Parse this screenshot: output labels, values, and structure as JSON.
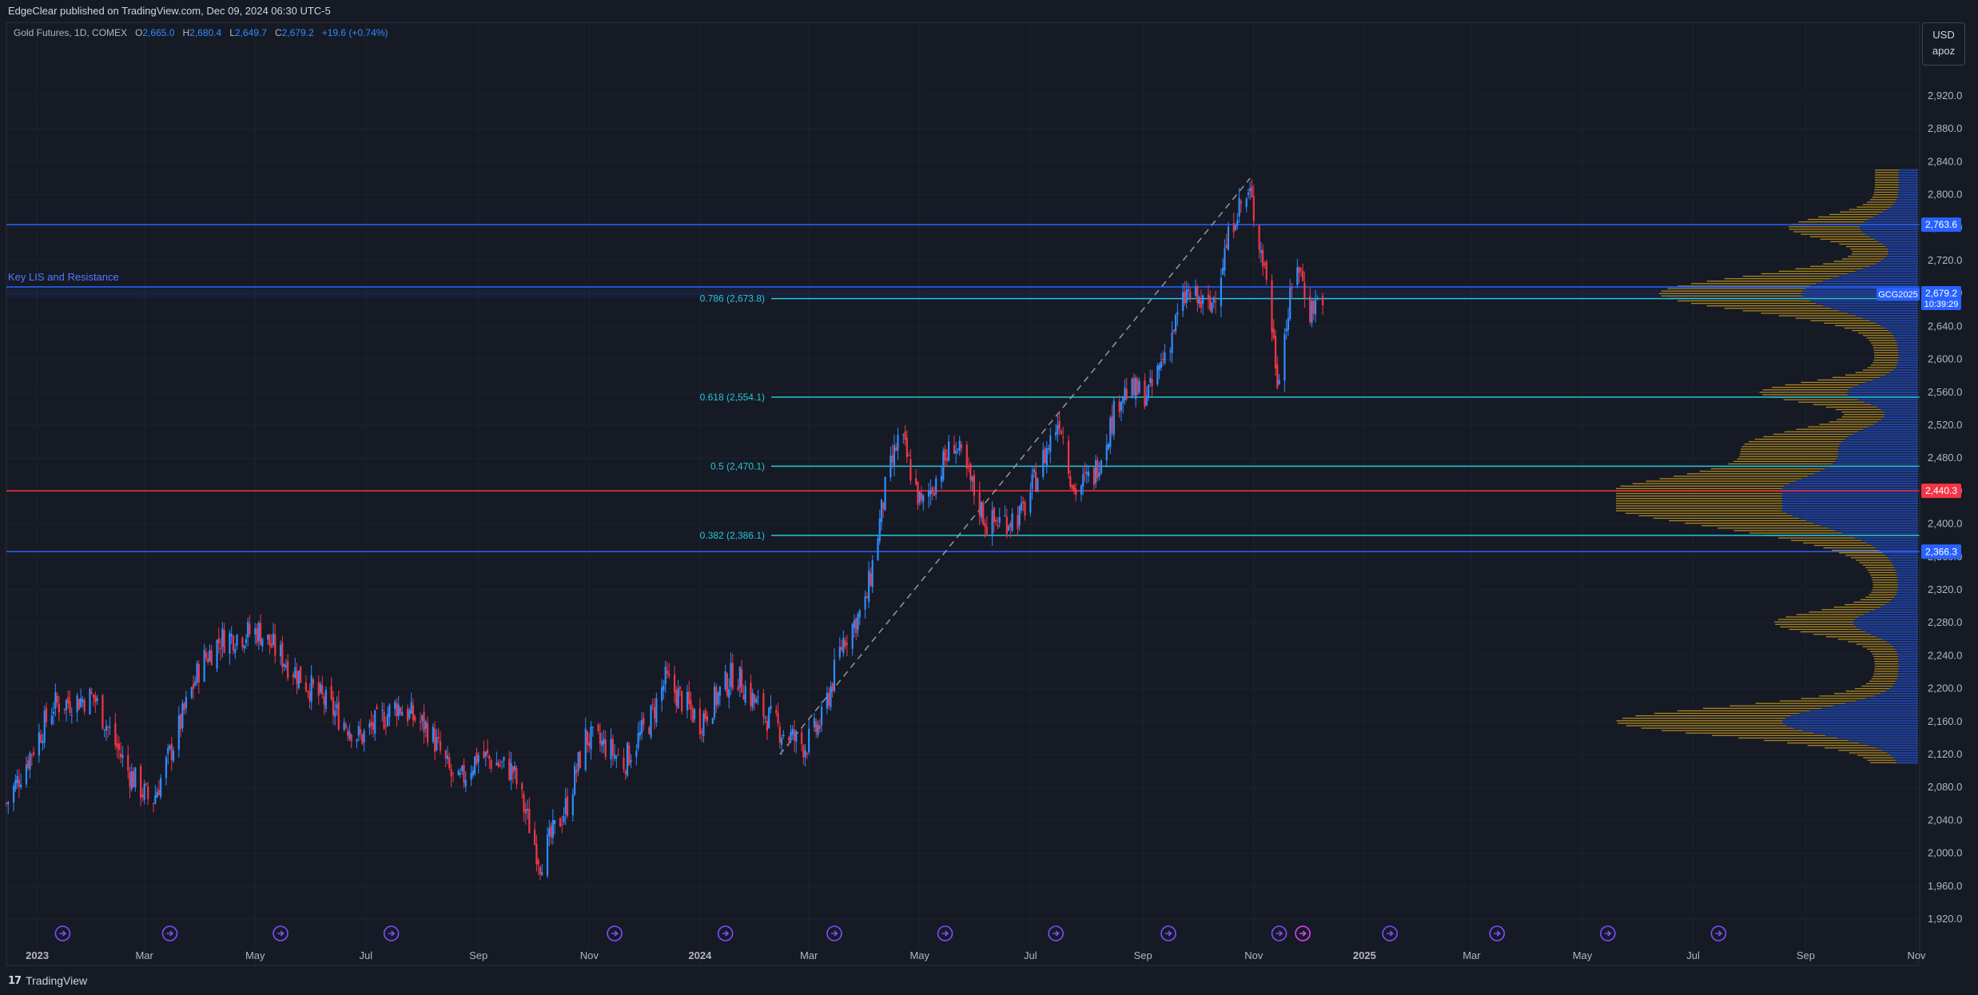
{
  "header": {
    "publisher": "EdgeClear published on TradingView.com, Dec 09, 2024 06:30 UTC-5",
    "symbol": "Gold Futures, 1D, COMEX",
    "ohlc": {
      "o_label": "O",
      "o": "2,665.0",
      "h_label": "H",
      "h": "2,680.4",
      "l_label": "L",
      "l": "2,649.7",
      "c_label": "C",
      "c": "2,679.2",
      "change": "+19.6 (+0.74%)"
    }
  },
  "currency_box": {
    "currency": "USD",
    "user": "apoz"
  },
  "footer": {
    "brand": "TradingView"
  },
  "colors": {
    "up": "#2f8cff",
    "down": "#f23645",
    "resistance": "#2962ff",
    "support_red": "#f23645",
    "fib": "#26c6da",
    "volume_profile_blue": "#2962ff",
    "volume_profile_gold": "#d4a017"
  },
  "chart_data": {
    "type": "candlestick",
    "instrument": "Gold Futures, 1D, COMEX",
    "ylim": [
      1900,
      2960
    ],
    "y_ticks": [
      "1,920.0",
      "1,960.0",
      "2,000.0",
      "2,040.0",
      "2,080.0",
      "2,120.0",
      "2,160.0",
      "2,200.0",
      "2,240.0",
      "2,280.0",
      "2,320.0",
      "2,360.0",
      "2,400.0",
      "2,440.0",
      "2,480.0",
      "2,520.0",
      "2,560.0",
      "2,600.0",
      "2,640.0",
      "2,680.0",
      "2,720.0",
      "2,760.0",
      "2,800.0",
      "2,840.0",
      "2,880.0",
      "2,920.0"
    ],
    "x_ticks": [
      {
        "label": "2023",
        "date": "2023-01-01",
        "bold": true
      },
      {
        "label": "Mar",
        "date": "2023-03-01"
      },
      {
        "label": "May",
        "date": "2023-05-01"
      },
      {
        "label": "Jul",
        "date": "2023-07-01"
      },
      {
        "label": "Sep",
        "date": "2023-09-01"
      },
      {
        "label": "Nov",
        "date": "2023-11-01"
      },
      {
        "label": "2024",
        "date": "2024-01-01",
        "bold": true
      },
      {
        "label": "Mar",
        "date": "2024-03-01"
      },
      {
        "label": "May",
        "date": "2024-05-01"
      },
      {
        "label": "Jul",
        "date": "2024-07-01"
      },
      {
        "label": "Sep",
        "date": "2024-09-01"
      },
      {
        "label": "Nov",
        "date": "2024-11-01"
      },
      {
        "label": "2025",
        "date": "2025-01-01",
        "bold": true
      },
      {
        "label": "Mar",
        "date": "2025-03-01"
      },
      {
        "label": "May",
        "date": "2025-05-01"
      },
      {
        "label": "Jul",
        "date": "2025-07-01"
      },
      {
        "label": "Sep",
        "date": "2025-09-01"
      },
      {
        "label": "Nov",
        "date": "2025-11-01"
      }
    ],
    "x_range": [
      "2022-12-15",
      "2025-11-01"
    ],
    "price_path": [
      {
        "date": "2022-12-15",
        "price": 2060
      },
      {
        "date": "2023-01-10",
        "price": 2180
      },
      {
        "date": "2023-02-01",
        "price": 2190
      },
      {
        "date": "2023-02-20",
        "price": 2100
      },
      {
        "date": "2023-03-05",
        "price": 2060
      },
      {
        "date": "2023-03-15",
        "price": 2120
      },
      {
        "date": "2023-04-01",
        "price": 2230
      },
      {
        "date": "2023-04-12",
        "price": 2260
      },
      {
        "date": "2023-05-03",
        "price": 2270
      },
      {
        "date": "2023-05-15",
        "price": 2240
      },
      {
        "date": "2023-06-01",
        "price": 2200
      },
      {
        "date": "2023-06-28",
        "price": 2140
      },
      {
        "date": "2023-07-18",
        "price": 2180
      },
      {
        "date": "2023-08-05",
        "price": 2150
      },
      {
        "date": "2023-08-20",
        "price": 2080
      },
      {
        "date": "2023-09-01",
        "price": 2120
      },
      {
        "date": "2023-09-20",
        "price": 2100
      },
      {
        "date": "2023-10-05",
        "price": 1990
      },
      {
        "date": "2023-10-20",
        "price": 2060
      },
      {
        "date": "2023-10-30",
        "price": 2140
      },
      {
        "date": "2023-11-10",
        "price": 2130
      },
      {
        "date": "2023-11-20",
        "price": 2110
      },
      {
        "date": "2023-12-04",
        "price": 2160
      },
      {
        "date": "2023-12-13",
        "price": 2210
      },
      {
        "date": "2024-01-01",
        "price": 2160
      },
      {
        "date": "2024-01-20",
        "price": 2220
      },
      {
        "date": "2024-02-01",
        "price": 2180
      },
      {
        "date": "2024-02-14",
        "price": 2150
      },
      {
        "date": "2024-02-28",
        "price": 2130
      },
      {
        "date": "2024-03-08",
        "price": 2160
      },
      {
        "date": "2024-03-20",
        "price": 2260
      },
      {
        "date": "2024-04-01",
        "price": 2300
      },
      {
        "date": "2024-04-12",
        "price": 2440
      },
      {
        "date": "2024-04-20",
        "price": 2510
      },
      {
        "date": "2024-05-02",
        "price": 2420
      },
      {
        "date": "2024-05-20",
        "price": 2500
      },
      {
        "date": "2024-06-07",
        "price": 2400
      },
      {
        "date": "2024-06-26",
        "price": 2410
      },
      {
        "date": "2024-07-17",
        "price": 2530
      },
      {
        "date": "2024-07-25",
        "price": 2440
      },
      {
        "date": "2024-08-05",
        "price": 2460
      },
      {
        "date": "2024-08-20",
        "price": 2560
      },
      {
        "date": "2024-09-05",
        "price": 2560
      },
      {
        "date": "2024-09-25",
        "price": 2680
      },
      {
        "date": "2024-10-08",
        "price": 2660
      },
      {
        "date": "2024-10-22",
        "price": 2780
      },
      {
        "date": "2024-10-30",
        "price": 2800
      },
      {
        "date": "2024-11-08",
        "price": 2700
      },
      {
        "date": "2024-11-14",
        "price": 2580
      },
      {
        "date": "2024-11-25",
        "price": 2720
      },
      {
        "date": "2024-12-02",
        "price": 2660
      },
      {
        "date": "2024-12-09",
        "price": 2679.2
      }
    ],
    "trend_line": {
      "from": {
        "date": "2024-02-14",
        "price": 2120
      },
      "to": {
        "date": "2024-10-30",
        "price": 2820
      }
    },
    "horizontal_levels": [
      {
        "price": 2763.6,
        "label": "2,763.6",
        "color": "#2962ff"
      },
      {
        "price": 2688,
        "color": "#2962ff",
        "name": "Key LIS and Resistance"
      },
      {
        "price": 2440.3,
        "label": "2,440.3",
        "color": "#f23645"
      },
      {
        "price": 2366.3,
        "label": "2,366.3",
        "color": "#2962ff"
      }
    ],
    "key_lis_label": "Key LIS and Resistance",
    "fib_levels": [
      {
        "price": 2673.8,
        "label": "0.786 (2,673.8)"
      },
      {
        "price": 2554.1,
        "label": "0.618 (2,554.1)"
      },
      {
        "price": 2470.1,
        "label": "0.5 (2,470.1)"
      },
      {
        "price": 2386.1,
        "label": "0.382 (2,386.1)"
      }
    ],
    "last_price": {
      "ticker": "GCG2025",
      "price": "2,679.2",
      "countdown": "10:39:29",
      "value": 2679.2
    },
    "event_markers": [
      "2023-01-15",
      "2023-03-15",
      "2023-05-15",
      "2023-07-15",
      "2023-11-15",
      "2024-01-15",
      "2024-03-15",
      "2024-05-15",
      "2024-07-15",
      "2024-09-15",
      "2024-11-15",
      "2024-11-28",
      "2025-01-15",
      "2025-03-15",
      "2025-05-15",
      "2025-07-15"
    ]
  }
}
